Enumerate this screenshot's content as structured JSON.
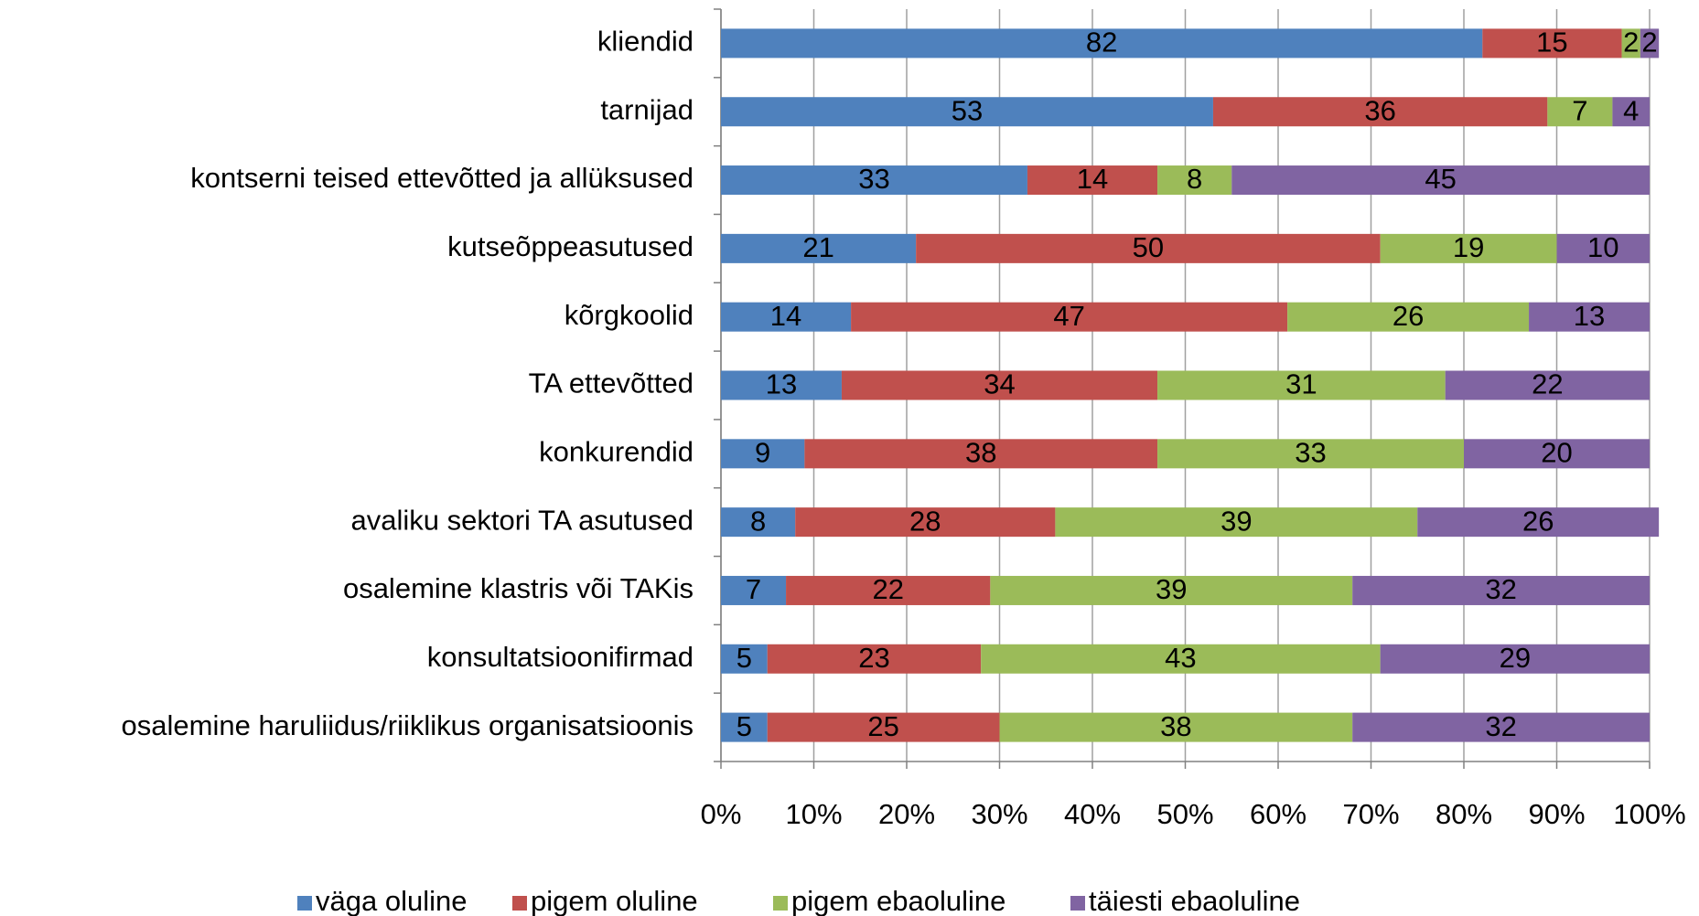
{
  "chart_data": {
    "type": "stacked-bar-horizontal",
    "categories": [
      "kliendid",
      "tarnijad",
      "kontserni teised ettevõtted ja allüksused",
      "kutseõppeasutused",
      "kõrgkoolid",
      "TA ettevõtted",
      "konkurendid",
      "avaliku sektori TA asutused",
      "osalemine klastris või TAKis",
      "konsultatsioonifirmad",
      "osalemine haruliidus/riiklikus organisatsioonis"
    ],
    "series": [
      {
        "name": "väga oluline",
        "color": "#4f81bd",
        "values": [
          82,
          53,
          33,
          21,
          14,
          13,
          9,
          8,
          7,
          5,
          5
        ]
      },
      {
        "name": "pigem oluline",
        "color": "#c0504d",
        "values": [
          15,
          36,
          14,
          50,
          47,
          34,
          38,
          28,
          22,
          23,
          25
        ]
      },
      {
        "name": "pigem ebaoluline",
        "color": "#9bbb59",
        "values": [
          2,
          7,
          8,
          19,
          26,
          31,
          33,
          39,
          39,
          43,
          38
        ]
      },
      {
        "name": "täiesti ebaoluline",
        "color": "#8064a2",
        "values": [
          2,
          4,
          45,
          10,
          13,
          22,
          20,
          26,
          32,
          29,
          32
        ]
      }
    ],
    "xlim": [
      0,
      100
    ],
    "xticks": [
      {
        "value": 0,
        "label": "0%"
      },
      {
        "value": 10,
        "label": "10%"
      },
      {
        "value": 20,
        "label": "20%"
      },
      {
        "value": 30,
        "label": "30%"
      },
      {
        "value": 40,
        "label": "40%"
      },
      {
        "value": 50,
        "label": "50%"
      },
      {
        "value": 60,
        "label": "60%"
      },
      {
        "value": 70,
        "label": "70%"
      },
      {
        "value": 80,
        "label": "80%"
      },
      {
        "value": 90,
        "label": "90%"
      },
      {
        "value": 100,
        "label": "100%"
      }
    ],
    "grid": true,
    "legend": "bottom"
  }
}
